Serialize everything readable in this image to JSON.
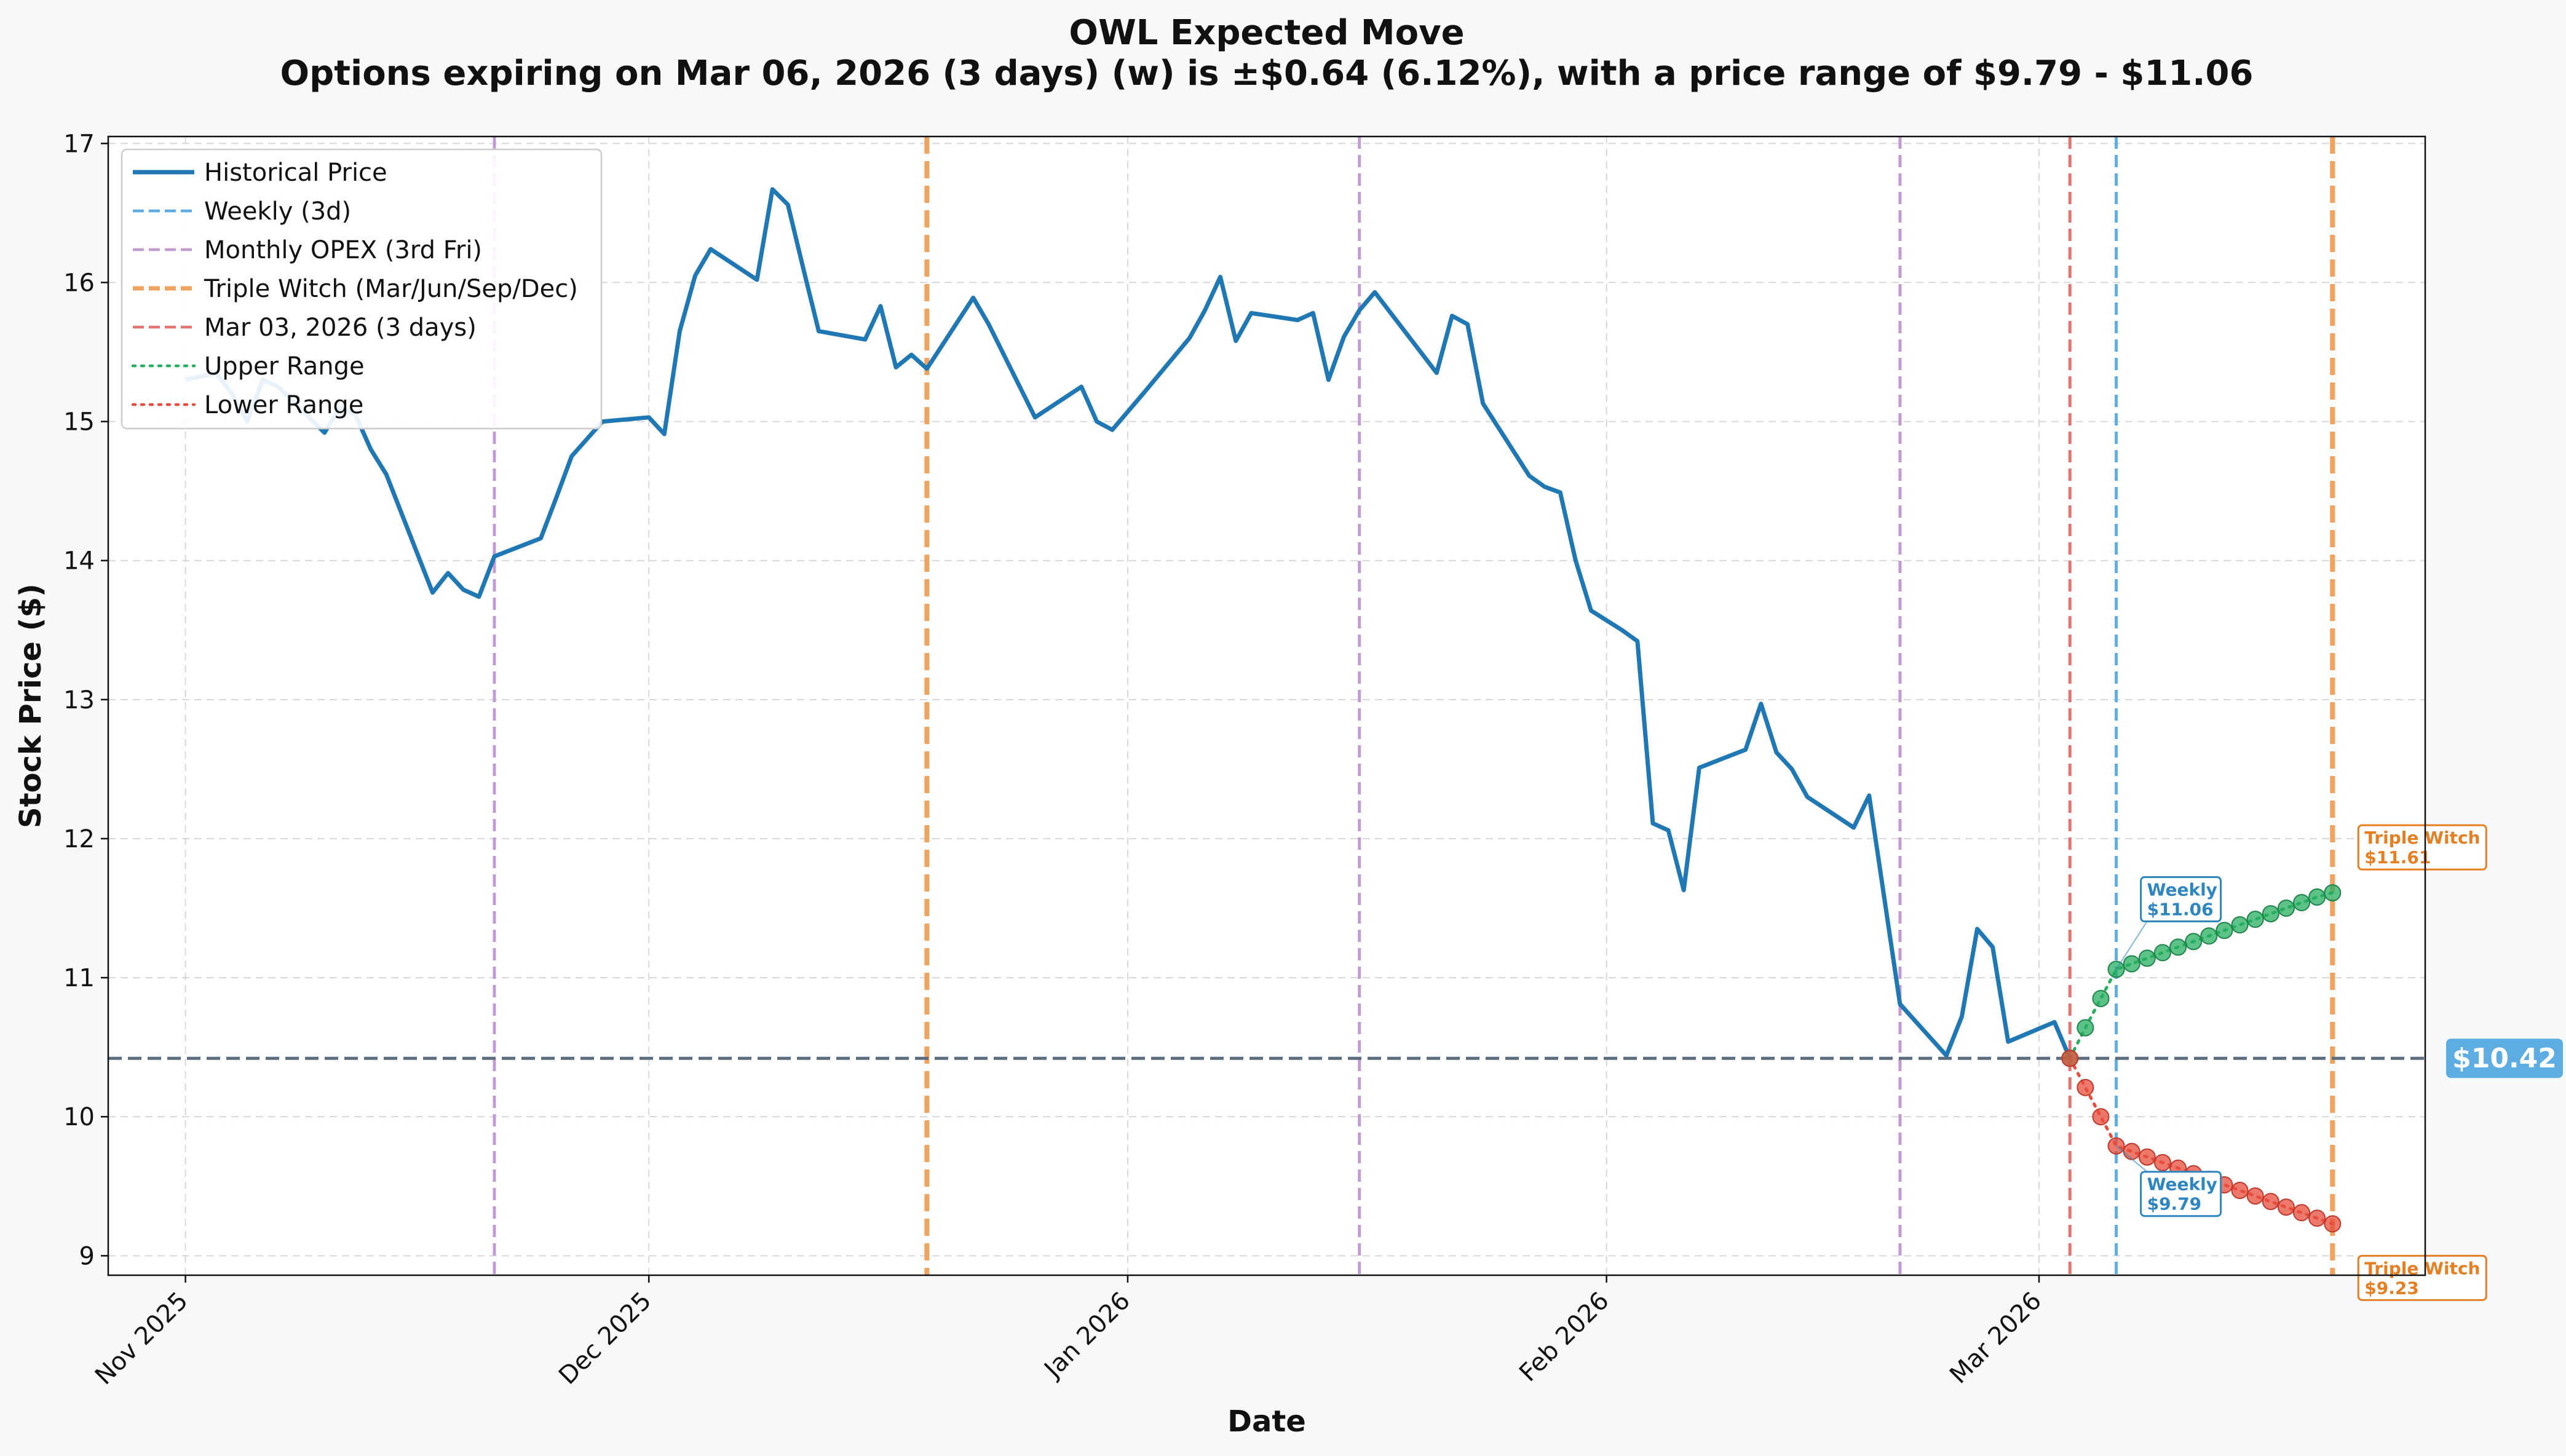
{
  "chart_data": {
    "type": "line",
    "title": "OWL Expected Move",
    "subtitle": "Options expiring on Mar 06, 2026 (3 days) (w) is ±$0.64 (6.12%), with a price range of $9.79 - $11.06",
    "xlabel": "Date",
    "ylabel": "Stock Price ($)",
    "x_range": [
      "2025-10-27",
      "2026-03-26"
    ],
    "ylim": [
      8.86,
      17.05
    ],
    "yticks": [
      9,
      10,
      11,
      12,
      13,
      14,
      15,
      16,
      17
    ],
    "xticks": [
      {
        "date": "2025-11-01",
        "label": "Nov 2025"
      },
      {
        "date": "2025-12-01",
        "label": "Dec 2025"
      },
      {
        "date": "2026-01-01",
        "label": "Jan 2026"
      },
      {
        "date": "2026-02-01",
        "label": "Feb 2026"
      },
      {
        "date": "2026-03-01",
        "label": "Mar 2026"
      }
    ],
    "grid": true,
    "legend_position": "top-left",
    "colors": {
      "historical": "#1f77b4",
      "weekly": "#5dade2",
      "monthly": "#c39bd3",
      "triple_witch": "#f0a35e",
      "current_date": "#e57373",
      "upper": "#27ae60",
      "lower": "#e74c3c",
      "current_price_line": "#5d6d7e",
      "weekly_label": "#2e86c1",
      "triple_label": "#e67e22"
    },
    "legend": [
      {
        "label": "Historical Price",
        "style": "solid",
        "color": "#1f77b4"
      },
      {
        "label": "Weekly (3d)",
        "style": "dashed",
        "color": "#5dade2"
      },
      {
        "label": "Monthly OPEX (3rd Fri)",
        "style": "dashed",
        "color": "#c39bd3"
      },
      {
        "label": "Triple Witch (Mar/Jun/Sep/Dec)",
        "style": "dashed",
        "color": "#f0a35e"
      },
      {
        "label": "Mar 03, 2026 (3 days)",
        "style": "dashed",
        "color": "#e57373"
      },
      {
        "label": "Upper Range",
        "style": "dotted",
        "color": "#27ae60"
      },
      {
        "label": "Lower Range",
        "style": "dotted",
        "color": "#e74c3c"
      }
    ],
    "series": [
      {
        "name": "Historical Price",
        "points": [
          [
            "2025-11-01",
            15.3
          ],
          [
            "2025-11-03",
            15.35
          ],
          [
            "2025-11-04",
            15.2
          ],
          [
            "2025-11-05",
            15.0
          ],
          [
            "2025-11-06",
            15.3
          ],
          [
            "2025-11-07",
            15.25
          ],
          [
            "2025-11-10",
            14.92
          ],
          [
            "2025-11-11",
            15.1
          ],
          [
            "2025-11-12",
            15.05
          ],
          [
            "2025-11-13",
            14.8
          ],
          [
            "2025-11-14",
            14.62
          ],
          [
            "2025-11-17",
            13.77
          ],
          [
            "2025-11-18",
            13.91
          ],
          [
            "2025-11-19",
            13.79
          ],
          [
            "2025-11-20",
            13.74
          ],
          [
            "2025-11-21",
            14.03
          ],
          [
            "2025-11-24",
            14.16
          ],
          [
            "2025-11-25",
            14.45
          ],
          [
            "2025-11-26",
            14.75
          ],
          [
            "2025-11-28",
            15.0
          ],
          [
            "2025-12-01",
            15.03
          ],
          [
            "2025-12-02",
            14.91
          ],
          [
            "2025-12-03",
            15.65
          ],
          [
            "2025-12-04",
            16.05
          ],
          [
            "2025-12-05",
            16.24
          ],
          [
            "2025-12-08",
            16.02
          ],
          [
            "2025-12-09",
            16.67
          ],
          [
            "2025-12-10",
            16.56
          ],
          [
            "2025-12-11",
            16.1
          ],
          [
            "2025-12-12",
            15.65
          ],
          [
            "2025-12-15",
            15.59
          ],
          [
            "2025-12-16",
            15.83
          ],
          [
            "2025-12-17",
            15.39
          ],
          [
            "2025-12-18",
            15.48
          ],
          [
            "2025-12-19",
            15.38
          ],
          [
            "2025-12-22",
            15.89
          ],
          [
            "2025-12-23",
            15.7
          ],
          [
            "2025-12-26",
            15.03
          ],
          [
            "2025-12-29",
            15.25
          ],
          [
            "2025-12-30",
            15.0
          ],
          [
            "2025-12-31",
            14.94
          ],
          [
            "2026-01-02",
            15.2
          ],
          [
            "2026-01-05",
            15.6
          ],
          [
            "2026-01-06",
            15.8
          ],
          [
            "2026-01-07",
            16.04
          ],
          [
            "2026-01-08",
            15.58
          ],
          [
            "2026-01-09",
            15.78
          ],
          [
            "2026-01-12",
            15.73
          ],
          [
            "2026-01-13",
            15.78
          ],
          [
            "2026-01-14",
            15.3
          ],
          [
            "2026-01-15",
            15.61
          ],
          [
            "2026-01-16",
            15.8
          ],
          [
            "2026-01-17",
            15.93
          ],
          [
            "2026-01-21",
            15.35
          ],
          [
            "2026-01-22",
            15.76
          ],
          [
            "2026-01-23",
            15.7
          ],
          [
            "2026-01-24",
            15.13
          ],
          [
            "2026-01-27",
            14.61
          ],
          [
            "2026-01-28",
            14.53
          ],
          [
            "2026-01-29",
            14.49
          ],
          [
            "2026-01-30",
            14.0
          ],
          [
            "2026-01-31",
            13.64
          ],
          [
            "2026-02-02",
            13.5
          ],
          [
            "2026-02-03",
            13.42
          ],
          [
            "2026-02-04",
            12.11
          ],
          [
            "2026-02-05",
            12.06
          ],
          [
            "2026-02-06",
            11.63
          ],
          [
            "2026-02-07",
            12.51
          ],
          [
            "2026-02-10",
            12.64
          ],
          [
            "2026-02-11",
            12.97
          ],
          [
            "2026-02-12",
            12.62
          ],
          [
            "2026-02-13",
            12.5
          ],
          [
            "2026-02-14",
            12.3
          ],
          [
            "2026-02-17",
            12.08
          ],
          [
            "2026-02-18",
            12.31
          ],
          [
            "2026-02-20",
            10.81
          ],
          [
            "2026-02-23",
            10.44
          ],
          [
            "2026-02-24",
            10.72
          ],
          [
            "2026-02-25",
            11.35
          ],
          [
            "2026-02-26",
            11.22
          ],
          [
            "2026-02-27",
            10.54
          ],
          [
            "2026-03-02",
            10.68
          ],
          [
            "2026-03-03",
            10.42
          ]
        ]
      },
      {
        "name": "Upper Range",
        "points": [
          [
            "2026-03-03",
            10.42
          ],
          [
            "2026-03-04",
            10.64
          ],
          [
            "2026-03-05",
            10.85
          ],
          [
            "2026-03-06",
            11.06
          ],
          [
            "2026-03-07",
            11.1
          ],
          [
            "2026-03-08",
            11.14
          ],
          [
            "2026-03-09",
            11.18
          ],
          [
            "2026-03-10",
            11.22
          ],
          [
            "2026-03-11",
            11.26
          ],
          [
            "2026-03-12",
            11.3
          ],
          [
            "2026-03-13",
            11.34
          ],
          [
            "2026-03-14",
            11.38
          ],
          [
            "2026-03-15",
            11.42
          ],
          [
            "2026-03-16",
            11.46
          ],
          [
            "2026-03-17",
            11.5
          ],
          [
            "2026-03-18",
            11.54
          ],
          [
            "2026-03-19",
            11.58
          ],
          [
            "2026-03-20",
            11.61
          ]
        ]
      },
      {
        "name": "Lower Range",
        "points": [
          [
            "2026-03-03",
            10.42
          ],
          [
            "2026-03-04",
            10.21
          ],
          [
            "2026-03-05",
            10.0
          ],
          [
            "2026-03-06",
            9.79
          ],
          [
            "2026-03-07",
            9.75
          ],
          [
            "2026-03-08",
            9.71
          ],
          [
            "2026-03-09",
            9.67
          ],
          [
            "2026-03-10",
            9.63
          ],
          [
            "2026-03-11",
            9.59
          ],
          [
            "2026-03-12",
            9.55
          ],
          [
            "2026-03-13",
            9.51
          ],
          [
            "2026-03-14",
            9.47
          ],
          [
            "2026-03-15",
            9.43
          ],
          [
            "2026-03-16",
            9.39
          ],
          [
            "2026-03-17",
            9.35
          ],
          [
            "2026-03-18",
            9.31
          ],
          [
            "2026-03-19",
            9.27
          ],
          [
            "2026-03-20",
            9.23
          ]
        ]
      }
    ],
    "vertical_lines": [
      {
        "date": "2025-11-21",
        "kind": "monthly"
      },
      {
        "date": "2025-12-19",
        "kind": "triple_witch"
      },
      {
        "date": "2026-01-16",
        "kind": "monthly"
      },
      {
        "date": "2026-02-20",
        "kind": "monthly"
      },
      {
        "date": "2026-03-03",
        "kind": "current_date"
      },
      {
        "date": "2026-03-06",
        "kind": "weekly"
      },
      {
        "date": "2026-03-20",
        "kind": "triple_witch"
      }
    ],
    "current_price": 10.42,
    "current_price_label": "$10.42",
    "annotations": [
      {
        "kind": "weekly",
        "line1": "Weekly",
        "line2": "$11.06",
        "date": "2026-03-06",
        "value": 11.06,
        "placement": "above"
      },
      {
        "kind": "weekly",
        "line1": "Weekly",
        "line2": "$9.79",
        "date": "2026-03-06",
        "value": 9.79,
        "placement": "below"
      },
      {
        "kind": "triple_witch",
        "line1": "Triple Witch",
        "line2": "$11.61",
        "date": "2026-03-20",
        "value": 11.61,
        "placement": "above"
      },
      {
        "kind": "triple_witch",
        "line1": "Triple Witch",
        "line2": "$9.23",
        "date": "2026-03-20",
        "value": 9.23,
        "placement": "below"
      }
    ]
  }
}
